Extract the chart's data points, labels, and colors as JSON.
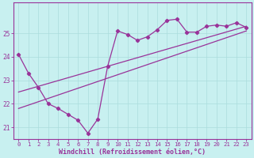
{
  "xlabel": "Windchill (Refroidissement éolien,°C)",
  "bg_color": "#c8f0f0",
  "line_color": "#993399",
  "grid_color": "#aadddd",
  "xlim": [
    -0.5,
    23.5
  ],
  "ylim": [
    20.5,
    26.3
  ],
  "yticks": [
    21,
    22,
    23,
    24,
    25
  ],
  "xticks": [
    0,
    1,
    2,
    3,
    4,
    5,
    6,
    7,
    8,
    9,
    10,
    11,
    12,
    13,
    14,
    15,
    16,
    17,
    18,
    19,
    20,
    21,
    22,
    23
  ],
  "line1_x": [
    0,
    1,
    2,
    3,
    4,
    5,
    6,
    7,
    8,
    9,
    10,
    11,
    12,
    13,
    14,
    15,
    16,
    17,
    18,
    19,
    20,
    21,
    22,
    23
  ],
  "line1_y": [
    24.1,
    23.3,
    22.7,
    22.0,
    21.8,
    21.55,
    21.3,
    20.75,
    21.35,
    23.6,
    25.1,
    24.95,
    24.7,
    24.85,
    25.15,
    25.55,
    25.6,
    25.05,
    25.05,
    25.3,
    25.35,
    25.3,
    25.45,
    25.25
  ],
  "line2_x": [
    0,
    23
  ],
  "line2_y": [
    22.5,
    25.3
  ],
  "line3_x": [
    0,
    23
  ],
  "line3_y": [
    21.8,
    25.1
  ],
  "marker": "D",
  "markersize": 2.2,
  "linewidth": 0.9,
  "tick_fontsize": 5.2,
  "xlabel_fontsize": 6.0
}
